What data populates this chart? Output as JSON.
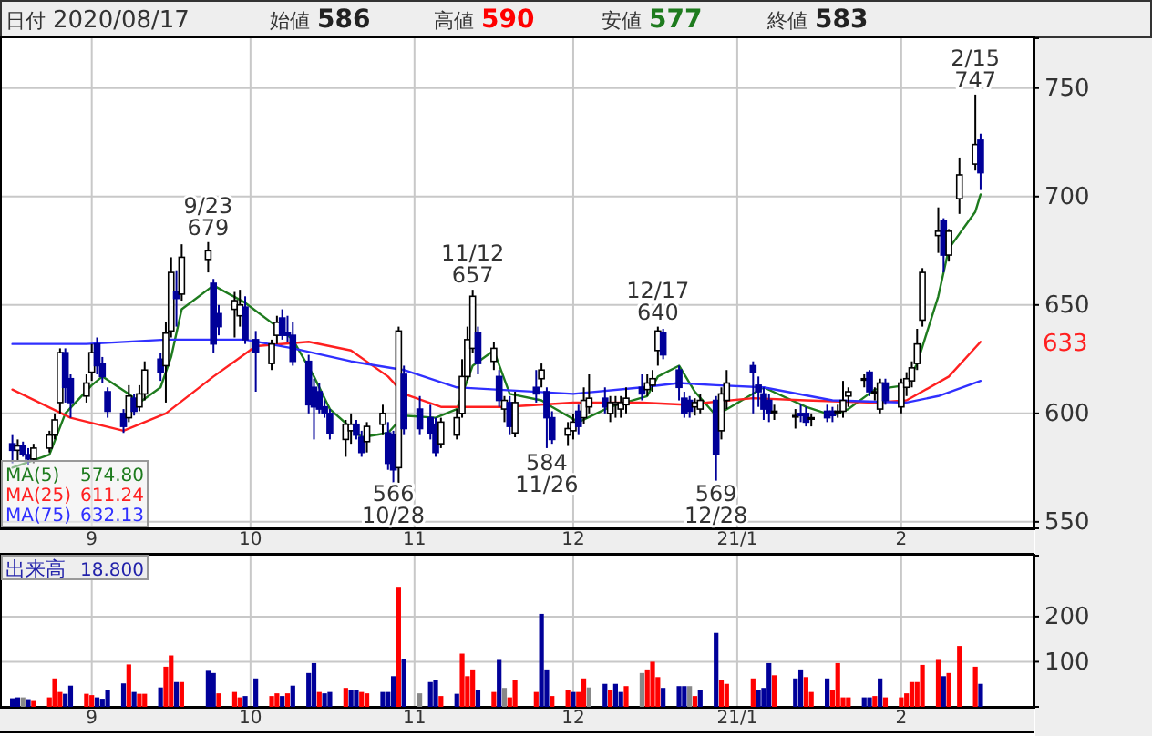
{
  "chart_data": [
    {
      "type": "candlestick",
      "title": "日付 2020/08/17",
      "legend": "bottom left",
      "grid": true,
      "xlim": [
        "2020-08-15",
        "2021-02-26"
      ],
      "xticks": [
        {
          "value": "2020-09-01",
          "label": "9"
        },
        {
          "value": "2020-10-01",
          "label": "10"
        },
        {
          "value": "2020-11-01",
          "label": "11"
        },
        {
          "value": "2020-12-01",
          "label": "12"
        },
        {
          "value": "2021-01-01",
          "label": "21/1"
        },
        {
          "value": "2021-02-01",
          "label": "2"
        }
      ],
      "ylim": [
        547,
        773
      ],
      "yticks": [
        550,
        600,
        650,
        700,
        750
      ],
      "x": [
        "2020-08-17",
        "2020-08-18",
        "2020-08-19",
        "2020-08-20",
        "2020-08-21",
        "2020-08-24",
        "2020-08-25",
        "2020-08-26",
        "2020-08-27",
        "2020-08-28",
        "2020-08-31",
        "2020-09-01",
        "2020-09-02",
        "2020-09-03",
        "2020-09-04",
        "2020-09-07",
        "2020-09-08",
        "2020-09-09",
        "2020-09-10",
        "2020-09-11",
        "2020-09-14",
        "2020-09-15",
        "2020-09-16",
        "2020-09-17",
        "2020-09-18",
        "2020-09-23",
        "2020-09-24",
        "2020-09-25",
        "2020-09-28",
        "2020-09-29",
        "2020-09-30",
        "2020-10-02",
        "2020-10-05",
        "2020-10-06",
        "2020-10-07",
        "2020-10-08",
        "2020-10-09",
        "2020-10-12",
        "2020-10-13",
        "2020-10-14",
        "2020-10-15",
        "2020-10-16",
        "2020-10-19",
        "2020-10-20",
        "2020-10-21",
        "2020-10-22",
        "2020-10-23",
        "2020-10-26",
        "2020-10-27",
        "2020-10-28",
        "2020-10-29",
        "2020-10-30",
        "2020-11-02",
        "2020-11-04",
        "2020-11-05",
        "2020-11-06",
        "2020-11-09",
        "2020-11-10",
        "2020-11-11",
        "2020-11-12",
        "2020-11-13",
        "2020-11-16",
        "2020-11-17",
        "2020-11-18",
        "2020-11-19",
        "2020-11-20",
        "2020-11-24",
        "2020-11-25",
        "2020-11-26",
        "2020-11-27",
        "2020-11-30",
        "2020-12-01",
        "2020-12-02",
        "2020-12-03",
        "2020-12-04",
        "2020-12-07",
        "2020-12-08",
        "2020-12-09",
        "2020-12-10",
        "2020-12-11",
        "2020-12-14",
        "2020-12-15",
        "2020-12-16",
        "2020-12-17",
        "2020-12-18",
        "2020-12-21",
        "2020-12-22",
        "2020-12-23",
        "2020-12-24",
        "2020-12-25",
        "2020-12-28",
        "2020-12-29",
        "2020-12-30",
        "2021-01-04",
        "2021-01-05",
        "2021-01-06",
        "2021-01-07",
        "2021-01-08",
        "2021-01-12",
        "2021-01-13",
        "2021-01-14",
        "2021-01-15",
        "2021-01-18",
        "2021-01-19",
        "2021-01-20",
        "2021-01-21",
        "2021-01-22",
        "2021-01-25",
        "2021-01-26",
        "2021-01-27",
        "2021-01-28",
        "2021-01-29",
        "2021-02-01",
        "2021-02-02",
        "2021-02-03",
        "2021-02-04",
        "2021-02-05",
        "2021-02-08",
        "2021-02-09",
        "2021-02-10",
        "2021-02-12",
        "2021-02-15",
        "2021-02-16"
      ],
      "ohlc": [
        [
          586,
          590,
          577,
          583
        ],
        [
          583,
          588,
          578,
          585
        ],
        [
          585,
          587,
          580,
          581
        ],
        [
          581,
          584,
          576,
          579
        ],
        [
          579,
          586,
          577,
          584
        ],
        [
          584,
          592,
          582,
          590
        ],
        [
          590,
          600,
          588,
          597
        ],
        [
          605,
          630,
          600,
          628
        ],
        [
          628,
          630,
          605,
          612
        ],
        [
          616,
          618,
          598,
          605
        ],
        [
          608,
          618,
          605,
          614
        ],
        [
          619,
          632,
          615,
          628
        ],
        [
          632,
          635,
          618,
          622
        ],
        [
          623,
          626,
          614,
          617
        ],
        [
          610,
          612,
          598,
          601
        ],
        [
          600,
          602,
          591,
          594
        ],
        [
          598,
          613,
          596,
          608
        ],
        [
          607,
          609,
          599,
          601
        ],
        [
          603,
          613,
          601,
          609
        ],
        [
          609,
          624,
          606,
          620
        ],
        [
          625,
          628,
          615,
          619
        ],
        [
          622,
          642,
          605,
          637
        ],
        [
          638,
          672,
          635,
          665
        ],
        [
          656,
          666,
          640,
          653
        ],
        [
          655,
          678,
          652,
          672
        ],
        [
          671,
          679,
          665,
          675
        ],
        [
          660,
          662,
          628,
          632
        ],
        [
          646,
          650,
          636,
          640
        ],
        [
          648,
          656,
          635,
          652
        ],
        [
          645,
          657,
          640,
          650
        ],
        [
          649,
          654,
          632,
          634
        ],
        [
          634,
          638,
          610,
          628
        ],
        [
          623,
          634,
          620,
          632
        ],
        [
          636,
          645,
          632,
          642
        ],
        [
          644,
          648,
          634,
          636
        ],
        [
          637,
          645,
          633,
          636
        ],
        [
          636,
          642,
          622,
          624
        ],
        [
          624,
          627,
          600,
          604
        ],
        [
          612,
          616,
          588,
          603
        ],
        [
          610,
          614,
          600,
          602
        ],
        [
          603,
          606,
          598,
          600
        ],
        [
          600,
          602,
          588,
          591
        ],
        [
          588,
          597,
          580,
          595
        ],
        [
          592,
          600,
          586,
          595
        ],
        [
          595,
          597,
          588,
          590
        ],
        [
          589,
          592,
          580,
          582
        ],
        [
          587,
          596,
          582,
          594
        ],
        [
          595,
          604,
          590,
          600
        ],
        [
          591,
          596,
          574,
          577
        ],
        [
          590,
          592,
          566,
          574
        ],
        [
          575,
          640,
          568,
          638
        ],
        [
          618,
          622,
          590,
          593
        ],
        [
          602,
          608,
          590,
          593
        ],
        [
          598,
          604,
          588,
          591
        ],
        [
          595,
          598,
          580,
          582
        ],
        [
          586,
          598,
          584,
          596
        ],
        [
          590,
          602,
          588,
          598
        ],
        [
          600,
          625,
          598,
          617
        ],
        [
          617,
          640,
          615,
          634
        ],
        [
          630,
          657,
          628,
          654
        ],
        [
          637,
          640,
          618,
          623
        ],
        [
          624,
          633,
          620,
          630
        ],
        [
          617,
          620,
          603,
          606
        ],
        [
          602,
          608,
          596,
          606
        ],
        [
          605,
          608,
          590,
          594
        ],
        [
          591,
          610,
          589,
          605
        ],
        [
          612,
          620,
          605,
          609
        ],
        [
          616,
          623,
          612,
          620
        ],
        [
          610,
          612,
          584,
          598
        ],
        [
          598,
          601,
          586,
          588
        ],
        [
          590,
          596,
          585,
          593
        ],
        [
          592,
          600,
          588,
          596
        ],
        [
          601,
          604,
          590,
          594
        ],
        [
          598,
          612,
          595,
          606
        ],
        [
          603,
          618,
          600,
          607
        ],
        [
          607,
          612,
          600,
          603
        ],
        [
          600,
          608,
          596,
          605
        ],
        [
          604,
          608,
          598,
          605
        ],
        [
          602,
          608,
          598,
          605
        ],
        [
          604,
          612,
          600,
          607
        ],
        [
          612,
          618,
          606,
          609
        ],
        [
          611,
          618,
          608,
          614
        ],
        [
          613,
          620,
          610,
          616
        ],
        [
          629,
          640,
          622,
          638
        ],
        [
          637,
          639,
          625,
          627
        ],
        [
          620,
          622,
          606,
          612
        ],
        [
          607,
          610,
          598,
          600
        ],
        [
          606,
          608,
          598,
          601
        ],
        [
          603,
          607,
          599,
          605
        ],
        [
          602,
          609,
          600,
          606
        ],
        [
          606,
          608,
          569,
          581
        ],
        [
          592,
          612,
          588,
          609
        ],
        [
          606,
          620,
          602,
          614
        ],
        [
          622,
          624,
          600,
          619
        ],
        [
          613,
          617,
          603,
          610
        ],
        [
          609,
          612,
          597,
          602
        ],
        [
          606,
          609,
          596,
          600
        ],
        [
          601,
          604,
          597,
          601
        ],
        [
          599,
          602,
          593,
          599
        ],
        [
          600,
          604,
          596,
          599
        ],
        [
          600,
          603,
          594,
          596
        ],
        [
          598,
          600,
          594,
          598
        ],
        [
          601,
          604,
          596,
          598
        ],
        [
          601,
          603,
          596,
          599
        ],
        [
          601,
          604,
          598,
          601
        ],
        [
          601,
          615,
          598,
          606
        ],
        [
          608,
          612,
          603,
          610
        ],
        [
          616,
          618,
          612,
          616
        ],
        [
          619,
          620,
          608,
          610
        ],
        [
          610,
          612,
          606,
          610
        ],
        [
          602,
          616,
          600,
          614
        ],
        [
          614,
          616,
          604,
          606
        ],
        [
          603,
          616,
          600,
          614
        ],
        [
          612,
          619,
          608,
          616
        ],
        [
          615,
          624,
          612,
          621
        ],
        [
          623,
          639,
          620,
          632
        ],
        [
          643,
          667,
          640,
          665
        ],
        [
          682,
          695,
          674,
          684
        ],
        [
          689,
          690,
          665,
          673
        ],
        [
          673,
          685,
          670,
          684
        ],
        [
          699,
          718,
          692,
          710
        ],
        [
          715,
          747,
          712,
          724
        ],
        [
          726,
          729,
          703,
          711
        ]
      ],
      "series": [
        {
          "name": "MA(5)",
          "type": "line",
          "color": "#1e7b1e",
          "x": [
            "2020-08-17",
            "2020-08-24",
            "2020-08-27",
            "2020-09-01",
            "2020-09-03",
            "2020-09-08",
            "2020-09-10",
            "2020-09-14",
            "2020-09-16",
            "2020-09-18",
            "2020-09-24",
            "2020-09-30",
            "2020-10-06",
            "2020-10-09",
            "2020-10-13",
            "2020-10-16",
            "2020-10-22",
            "2020-10-27",
            "2020-10-30",
            "2020-11-05",
            "2020-11-09",
            "2020-11-12",
            "2020-11-16",
            "2020-11-19",
            "2020-11-25",
            "2020-11-27",
            "2020-12-02",
            "2020-12-08",
            "2020-12-15",
            "2020-12-17",
            "2020-12-21",
            "2020-12-24",
            "2020-12-28",
            "2021-01-06",
            "2021-01-14",
            "2021-01-19",
            "2021-01-22",
            "2021-01-27",
            "2021-02-02",
            "2021-02-04",
            "2021-02-08",
            "2021-02-10",
            "2021-02-15",
            "2021-02-16"
          ],
          "values": [
            575,
            581,
            600,
            613,
            617,
            609,
            605,
            612,
            626,
            648,
            659,
            651,
            640,
            634,
            617,
            602,
            589,
            591,
            599,
            598,
            602,
            622,
            629,
            609,
            606,
            603,
            596,
            603,
            608,
            617,
            622,
            610,
            599,
            612,
            603,
            599,
            602,
            611,
            613,
            623,
            654,
            676,
            693,
            701
          ]
        },
        {
          "name": "MA(25)",
          "type": "line",
          "color": "#ff2020",
          "x": [
            "2020-08-17",
            "2020-08-28",
            "2020-09-07",
            "2020-09-15",
            "2020-09-24",
            "2020-10-02",
            "2020-10-12",
            "2020-10-20",
            "2020-10-27",
            "2020-10-30",
            "2020-11-06",
            "2020-11-18",
            "2020-12-01",
            "2020-12-14",
            "2020-12-22",
            "2021-01-04",
            "2021-01-14",
            "2021-01-27",
            "2021-02-02",
            "2021-02-10",
            "2021-02-16"
          ],
          "values": [
            611,
            598,
            592,
            600,
            617,
            631,
            633,
            629,
            617,
            609,
            603,
            603,
            605,
            605,
            604,
            607,
            606,
            605,
            606,
            617,
            633
          ]
        },
        {
          "name": "MA(75)",
          "type": "line",
          "color": "#3030ff",
          "x": [
            "2020-08-17",
            "2020-08-31",
            "2020-09-15",
            "2020-09-30",
            "2020-10-09",
            "2020-10-20",
            "2020-10-30",
            "2020-11-09",
            "2020-12-01",
            "2020-12-14",
            "2020-12-21",
            "2020-12-28",
            "2021-01-06",
            "2021-01-19",
            "2021-02-02",
            "2021-02-08",
            "2021-02-16"
          ],
          "values": [
            632,
            632,
            634,
            634,
            630,
            624,
            620,
            612,
            609,
            612,
            614,
            613,
            612,
            606,
            605,
            608,
            615
          ]
        }
      ],
      "annotations": [
        "始値 586",
        "高値 590",
        "安値 577",
        "終値 583",
        "574.80",
        "611.24",
        "632.13",
        {
          "text": "9/23\n679",
          "x": "2020-09-23",
          "y": 679
        },
        {
          "text": "566\n10/28",
          "x": "2020-10-28",
          "y": 566
        },
        {
          "text": "11/12\n657",
          "x": "2020-11-12",
          "y": 657
        },
        {
          "text": "584\n11/26",
          "x": "2020-11-26",
          "y": 584
        },
        {
          "text": "12/17\n640",
          "x": "2020-12-17",
          "y": 640
        },
        {
          "text": "569\n12/28",
          "x": "2020-12-28",
          "y": 569
        },
        {
          "text": "2/15\n747",
          "x": "2021-02-15",
          "y": 747
        },
        "633"
      ]
    },
    {
      "type": "bar",
      "title": "出来高",
      "grid": true,
      "annotations": [
        "18.800"
      ],
      "xlim": [
        "2020-08-15",
        "2021-02-26"
      ],
      "xticks": [
        {
          "value": "2020-09-01",
          "label": "9"
        },
        {
          "value": "2020-10-01",
          "label": "10"
        },
        {
          "value": "2020-11-01",
          "label": "11"
        },
        {
          "value": "2020-12-01",
          "label": "12"
        },
        {
          "value": "2021-01-01",
          "label": "21/1"
        },
        {
          "value": "2021-02-01",
          "label": "2"
        }
      ],
      "ylim": [
        0,
        335
      ],
      "yticks": [
        100,
        200
      ],
      "x": [
        "2020-08-17",
        "2020-08-18",
        "2020-08-19",
        "2020-08-20",
        "2020-08-21",
        "2020-08-24",
        "2020-08-25",
        "2020-08-26",
        "2020-08-27",
        "2020-08-28",
        "2020-08-31",
        "2020-09-01",
        "2020-09-02",
        "2020-09-03",
        "2020-09-04",
        "2020-09-07",
        "2020-09-08",
        "2020-09-09",
        "2020-09-10",
        "2020-09-11",
        "2020-09-14",
        "2020-09-15",
        "2020-09-16",
        "2020-09-17",
        "2020-09-18",
        "2020-09-23",
        "2020-09-24",
        "2020-09-25",
        "2020-09-28",
        "2020-09-29",
        "2020-09-30",
        "2020-10-02",
        "2020-10-05",
        "2020-10-06",
        "2020-10-07",
        "2020-10-08",
        "2020-10-09",
        "2020-10-12",
        "2020-10-13",
        "2020-10-14",
        "2020-10-15",
        "2020-10-16",
        "2020-10-19",
        "2020-10-20",
        "2020-10-21",
        "2020-10-22",
        "2020-10-23",
        "2020-10-26",
        "2020-10-27",
        "2020-10-28",
        "2020-10-29",
        "2020-10-30",
        "2020-11-02",
        "2020-11-04",
        "2020-11-05",
        "2020-11-06",
        "2020-11-09",
        "2020-11-10",
        "2020-11-11",
        "2020-11-12",
        "2020-11-13",
        "2020-11-16",
        "2020-11-17",
        "2020-11-18",
        "2020-11-19",
        "2020-11-20",
        "2020-11-24",
        "2020-11-25",
        "2020-11-26",
        "2020-11-27",
        "2020-11-30",
        "2020-12-01",
        "2020-12-02",
        "2020-12-03",
        "2020-12-04",
        "2020-12-07",
        "2020-12-08",
        "2020-12-09",
        "2020-12-10",
        "2020-12-11",
        "2020-12-14",
        "2020-12-15",
        "2020-12-16",
        "2020-12-17",
        "2020-12-18",
        "2020-12-21",
        "2020-12-22",
        "2020-12-23",
        "2020-12-24",
        "2020-12-25",
        "2020-12-28",
        "2020-12-29",
        "2020-12-30",
        "2021-01-04",
        "2021-01-05",
        "2021-01-06",
        "2021-01-07",
        "2021-01-08",
        "2021-01-12",
        "2021-01-13",
        "2021-01-14",
        "2021-01-15",
        "2021-01-18",
        "2021-01-19",
        "2021-01-20",
        "2021-01-21",
        "2021-01-22",
        "2021-01-25",
        "2021-01-26",
        "2021-01-27",
        "2021-01-28",
        "2021-01-29",
        "2021-02-01",
        "2021-02-02",
        "2021-02-03",
        "2021-02-04",
        "2021-02-05",
        "2021-02-08",
        "2021-02-09",
        "2021-02-10",
        "2021-02-12",
        "2021-02-15",
        "2021-02-16"
      ],
      "values": [
        19,
        21,
        21,
        17,
        13,
        21,
        63,
        33,
        29,
        47,
        29,
        26,
        21,
        18,
        38,
        52,
        94,
        33,
        29,
        29,
        43,
        89,
        114,
        55,
        55,
        80,
        75,
        30,
        33,
        21,
        24,
        63,
        24,
        30,
        24,
        30,
        47,
        75,
        97,
        33,
        30,
        33,
        42,
        38,
        38,
        33,
        30,
        33,
        33,
        68,
        266,
        105,
        30,
        55,
        59,
        24,
        29,
        118,
        68,
        83,
        38,
        33,
        104,
        42,
        21,
        59,
        33,
        206,
        83,
        24,
        38,
        33,
        33,
        63,
        43,
        51,
        37,
        51,
        33,
        46,
        75,
        83,
        100,
        66,
        42,
        46,
        46,
        46,
        24,
        38,
        164,
        59,
        51,
        63,
        37,
        42,
        97,
        70,
        63,
        83,
        66,
        33,
        63,
        38,
        97,
        21,
        21,
        21,
        21,
        24,
        63,
        21,
        21,
        30,
        55,
        55,
        93,
        104,
        68,
        75,
        135,
        89,
        51
      ],
      "colors": [
        "#000099",
        "#000099",
        "#888888",
        "#000099",
        "#ff0000",
        "#ff0000",
        "#ff0000",
        "#ff0000",
        "#000099",
        "#000099",
        "#ff0000",
        "#ff0000",
        "#000099",
        "#000099",
        "#000099",
        "#000099",
        "#ff0000",
        "#000099",
        "#ff0000",
        "#ff0000",
        "#000099",
        "#ff0000",
        "#ff0000",
        "#000099",
        "#ff0000",
        "#000099",
        "#000099",
        "#ff0000",
        "#ff0000",
        "#ff0000",
        "#000099",
        "#000099",
        "#ff0000",
        "#ff0000",
        "#000099",
        "#ff0000",
        "#000099",
        "#000099",
        "#000099",
        "#ff0000",
        "#000099",
        "#000099",
        "#ff0000",
        "#000099",
        "#000099",
        "#ff0000",
        "#ff0000",
        "#000099",
        "#000099",
        "#000099",
        "#ff0000",
        "#000099",
        "#888888",
        "#000099",
        "#000099",
        "#ff0000",
        "#000099",
        "#ff0000",
        "#ff0000",
        "#ff0000",
        "#000099",
        "#ff0000",
        "#000099",
        "#888888",
        "#ff0000",
        "#ff0000",
        "#ff0000",
        "#000099",
        "#000099",
        "#ff0000",
        "#ff0000",
        "#000099",
        "#ff0000",
        "#ff0000",
        "#888888",
        "#000099",
        "#ff0000",
        "#000099",
        "#000099",
        "#ff0000",
        "#888888",
        "#ff0000",
        "#ff0000",
        "#ff0000",
        "#000099",
        "#000099",
        "#000099",
        "#888888",
        "#ff0000",
        "#000099",
        "#000099",
        "#ff0000",
        "#ff0000",
        "#ff0000",
        "#000099",
        "#000099",
        "#000099",
        "#ff0000",
        "#000099",
        "#000099",
        "#ff0000",
        "#ff0000",
        "#000099",
        "#ff0000",
        "#ff0000",
        "#ff0000",
        "#ff0000",
        "#000099",
        "#000099",
        "#ff0000",
        "#000099",
        "#ff0000",
        "#ff0000",
        "#ff0000",
        "#ff0000",
        "#ff0000",
        "#ff0000",
        "#ff0000",
        "#000099",
        "#ff0000",
        "#ff0000",
        "#ff0000",
        "#000099"
      ]
    }
  ]
}
